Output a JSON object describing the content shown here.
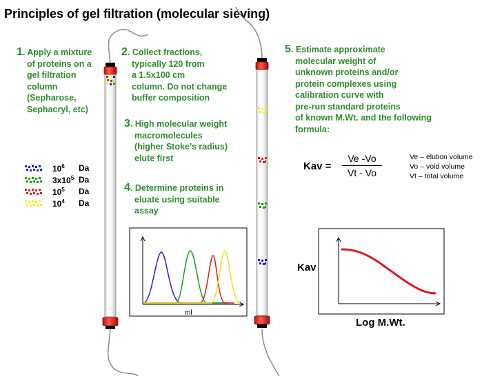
{
  "title": "Principles of gel filtration (molecular sieving)",
  "steps": {
    "step1": {
      "num": "1",
      "lines": [
        ". Apply a mixture",
        "of proteins on a",
        "gel filtration",
        "column",
        "(Sepharose,",
        "Sephacryl, etc)"
      ]
    },
    "step2": {
      "num": "2",
      "lines": [
        ". Collect fractions,",
        "typically 120 from",
        "a 1.5x100 cm",
        "column. Do not change",
        "buffer composition"
      ]
    },
    "step3": {
      "num": "3",
      "lines": [
        ". High molecular weight",
        "macromolecules",
        "(higher Stoke’s radius)",
        "elute first"
      ]
    },
    "step4": {
      "num": "4",
      "lines": [
        ". Determine proteins in",
        "eluate using suitable",
        "assay"
      ]
    },
    "step5": {
      "num": "5",
      "lines": [
        ". Estimate approximate",
        "molecular weight of",
        "unknown proteins and/or",
        "protein complexes using",
        "calibration curve with",
        "pre-run standard proteins",
        "of known M.Wt. and the following",
        "formula:"
      ]
    }
  },
  "legend": [
    {
      "base": "10",
      "exp": "6",
      "unit": "Da",
      "color": "#1f1fd0"
    },
    {
      "base": "3x10",
      "exp": "5",
      "unit": "Da",
      "color": "#1a9a1a"
    },
    {
      "base": "10",
      "exp": "5",
      "unit": "Da",
      "color": "#d01f1f"
    },
    {
      "base": "10",
      "exp": "4",
      "unit": "Da",
      "color": "#f2ee1a"
    }
  ],
  "formula": {
    "lhs": "Kav =",
    "numerator": "Ve -Vo",
    "denominator": "Vt - Vo"
  },
  "definitions": [
    "Ve – elution volume",
    "Vo – void volume",
    "Vt  – total volume"
  ],
  "elution_plot": {
    "xlabel": "ml"
  },
  "calibration_plot": {
    "ylabel": "Kav",
    "xlabel": "Log M.Wt."
  },
  "colors": {
    "text_green": "#2e8b2e",
    "cap_red": "#e8241b",
    "curve_red": "#e0161d"
  }
}
